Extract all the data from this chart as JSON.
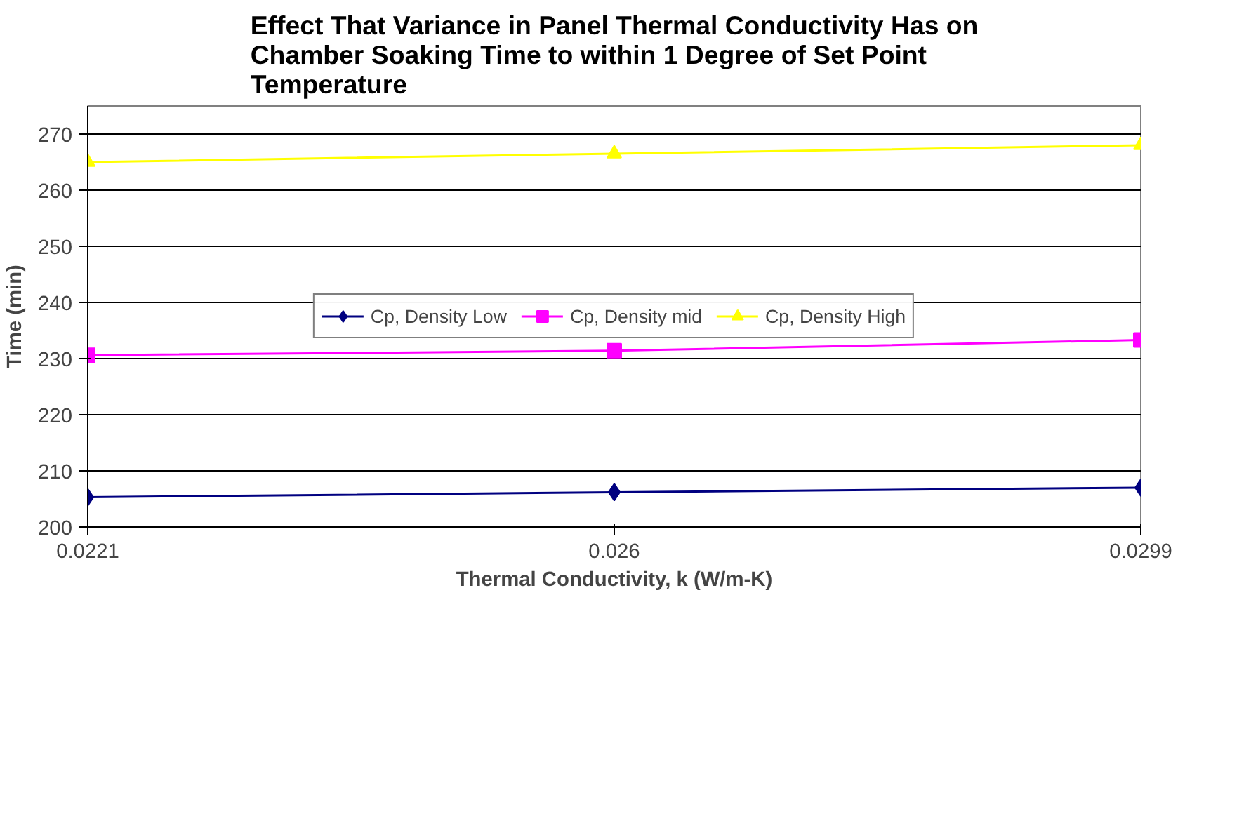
{
  "chart_data": {
    "type": "line",
    "title": "Effect That Variance in Panel Thermal Conductivity Has on\nChamber Soaking Time to within 1 Degree of Set Point\nTemperature",
    "xlabel": "Thermal Conductivity, k (W/m-K)",
    "ylabel": "Time (min)",
    "categories": [
      "0.0221",
      "0.026",
      "0.0299"
    ],
    "series": [
      {
        "name": "Cp, Density Low",
        "color": "#000080",
        "marker": "diamond",
        "values": [
          205.3,
          206.2,
          207
        ]
      },
      {
        "name": "Cp, Density mid",
        "color": "#ff00ff",
        "marker": "square",
        "values": [
          230.6,
          231.4,
          233.3
        ]
      },
      {
        "name": "Cp, Density High",
        "color": "#ffff00",
        "marker": "triangle",
        "values": [
          265,
          266.5,
          268
        ]
      }
    ],
    "ylim": [
      200,
      275
    ],
    "yticks": [
      200,
      210,
      220,
      230,
      240,
      250,
      260,
      270
    ],
    "grid": "y",
    "legend": "center"
  }
}
